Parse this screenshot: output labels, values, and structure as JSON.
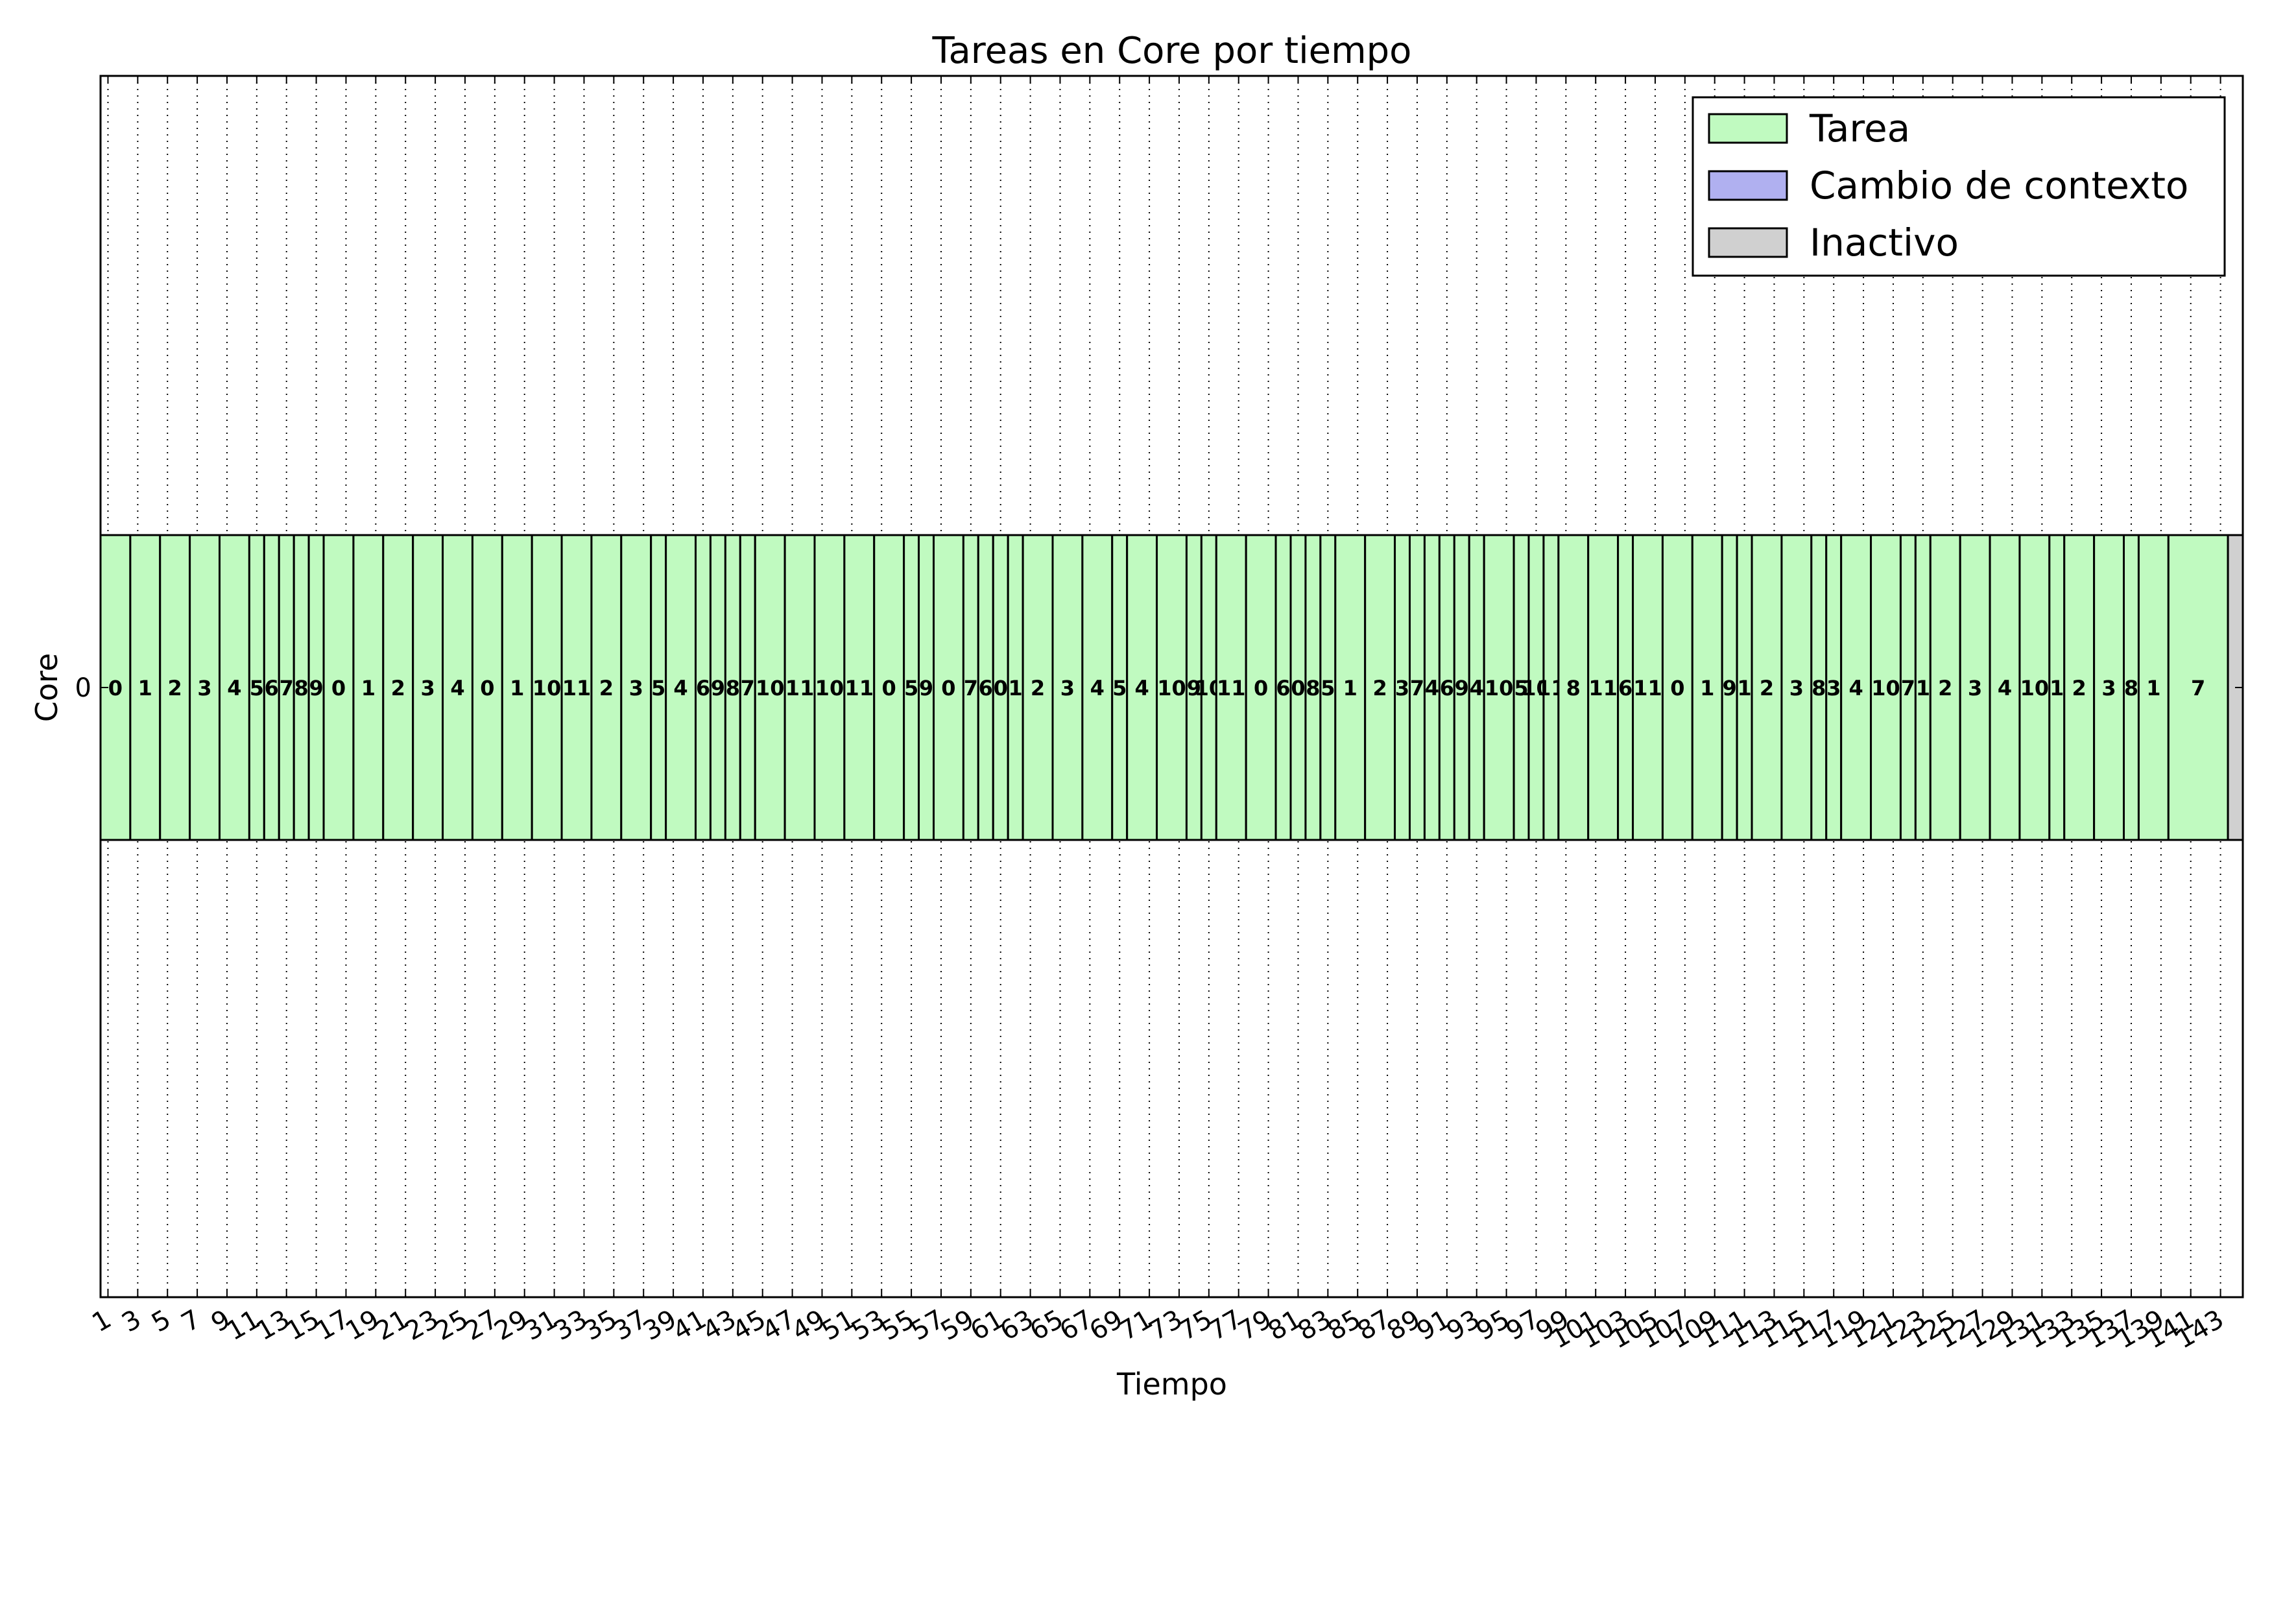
{
  "chart_data": {
    "type": "bar",
    "title": "Tareas en Core por tiempo",
    "xlabel": "Tiempo",
    "ylabel": "Core",
    "xlim": [
      0,
      144
    ],
    "grid": true,
    "cores": [
      "0"
    ],
    "x_ticks": [
      "1",
      "3",
      "5",
      "7",
      "9",
      "11",
      "13",
      "15",
      "17",
      "19",
      "21",
      "23",
      "25",
      "27",
      "29",
      "31",
      "33",
      "35",
      "37",
      "39",
      "41",
      "43",
      "45",
      "47",
      "49",
      "51",
      "53",
      "55",
      "57",
      "59",
      "61",
      "63",
      "65",
      "67",
      "69",
      "71",
      "73",
      "75",
      "77",
      "79",
      "81",
      "83",
      "85",
      "87",
      "89",
      "91",
      "93",
      "95",
      "97",
      "99",
      "101",
      "103",
      "105",
      "107",
      "109",
      "111",
      "113",
      "115",
      "117",
      "119",
      "121",
      "123",
      "125",
      "127",
      "129",
      "131",
      "133",
      "135",
      "137",
      "139",
      "141",
      "143"
    ],
    "legend": {
      "placement": "top-right",
      "items": [
        {
          "label": "Tarea",
          "color": "#c0fac0"
        },
        {
          "label": "Cambio de contexto",
          "color": "#b0b0f0"
        },
        {
          "label": "Inactivo",
          "color": "#d0d0d0"
        }
      ]
    },
    "colors": {
      "tarea": "#c0fac0",
      "cambio": "#b0b0f0",
      "inactivo": "#d0d0d0"
    },
    "segments": [
      {
        "task": "0",
        "start": 0,
        "end": 2,
        "kind": "tarea"
      },
      {
        "task": "1",
        "start": 2,
        "end": 4,
        "kind": "tarea"
      },
      {
        "task": "2",
        "start": 4,
        "end": 6,
        "kind": "tarea"
      },
      {
        "task": "3",
        "start": 6,
        "end": 8,
        "kind": "tarea"
      },
      {
        "task": "4",
        "start": 8,
        "end": 10,
        "kind": "tarea"
      },
      {
        "task": "5",
        "start": 10,
        "end": 11,
        "kind": "tarea"
      },
      {
        "task": "6",
        "start": 11,
        "end": 12,
        "kind": "tarea"
      },
      {
        "task": "7",
        "start": 12,
        "end": 13,
        "kind": "tarea"
      },
      {
        "task": "8",
        "start": 13,
        "end": 14,
        "kind": "tarea"
      },
      {
        "task": "9",
        "start": 14,
        "end": 15,
        "kind": "tarea"
      },
      {
        "task": "0",
        "start": 15,
        "end": 17,
        "kind": "tarea"
      },
      {
        "task": "1",
        "start": 17,
        "end": 19,
        "kind": "tarea"
      },
      {
        "task": "2",
        "start": 19,
        "end": 21,
        "kind": "tarea"
      },
      {
        "task": "3",
        "start": 21,
        "end": 23,
        "kind": "tarea"
      },
      {
        "task": "4",
        "start": 23,
        "end": 25,
        "kind": "tarea"
      },
      {
        "task": "0",
        "start": 25,
        "end": 27,
        "kind": "tarea"
      },
      {
        "task": "1",
        "start": 27,
        "end": 29,
        "kind": "tarea"
      },
      {
        "task": "10",
        "start": 29,
        "end": 31,
        "kind": "tarea"
      },
      {
        "task": "11",
        "start": 31,
        "end": 33,
        "kind": "tarea"
      },
      {
        "task": "2",
        "start": 33,
        "end": 35,
        "kind": "tarea"
      },
      {
        "task": "3",
        "start": 35,
        "end": 37,
        "kind": "tarea"
      },
      {
        "task": "5",
        "start": 37,
        "end": 38,
        "kind": "tarea"
      },
      {
        "task": "4",
        "start": 38,
        "end": 40,
        "kind": "tarea"
      },
      {
        "task": "6",
        "start": 40,
        "end": 41,
        "kind": "tarea"
      },
      {
        "task": "9",
        "start": 41,
        "end": 42,
        "kind": "tarea"
      },
      {
        "task": "8",
        "start": 42,
        "end": 43,
        "kind": "tarea"
      },
      {
        "task": "7",
        "start": 43,
        "end": 44,
        "kind": "tarea"
      },
      {
        "task": "10",
        "start": 44,
        "end": 46,
        "kind": "tarea"
      },
      {
        "task": "11",
        "start": 46,
        "end": 48,
        "kind": "tarea"
      },
      {
        "task": "10",
        "start": 48,
        "end": 50,
        "kind": "tarea"
      },
      {
        "task": "11",
        "start": 50,
        "end": 52,
        "kind": "tarea"
      },
      {
        "task": "0",
        "start": 52,
        "end": 54,
        "kind": "tarea"
      },
      {
        "task": "5",
        "start": 54,
        "end": 55,
        "kind": "tarea"
      },
      {
        "task": "9",
        "start": 55,
        "end": 56,
        "kind": "tarea"
      },
      {
        "task": "0",
        "start": 56,
        "end": 58,
        "kind": "tarea"
      },
      {
        "task": "7",
        "start": 58,
        "end": 59,
        "kind": "tarea"
      },
      {
        "task": "6",
        "start": 59,
        "end": 60,
        "kind": "tarea"
      },
      {
        "task": "0",
        "start": 60,
        "end": 61,
        "kind": "tarea"
      },
      {
        "task": "1",
        "start": 61,
        "end": 62,
        "kind": "tarea"
      },
      {
        "task": "2",
        "start": 62,
        "end": 64,
        "kind": "tarea"
      },
      {
        "task": "3",
        "start": 64,
        "end": 66,
        "kind": "tarea"
      },
      {
        "task": "4",
        "start": 66,
        "end": 68,
        "kind": "tarea"
      },
      {
        "task": "5",
        "start": 68,
        "end": 69,
        "kind": "tarea"
      },
      {
        "task": "4",
        "start": 69,
        "end": 71,
        "kind": "tarea"
      },
      {
        "task": "10",
        "start": 71,
        "end": 73,
        "kind": "tarea"
      },
      {
        "task": "9",
        "start": 73,
        "end": 74,
        "kind": "tarea"
      },
      {
        "task": "10",
        "start": 74,
        "end": 75,
        "kind": "tarea"
      },
      {
        "task": "11",
        "start": 75,
        "end": 77,
        "kind": "tarea"
      },
      {
        "task": "0",
        "start": 77,
        "end": 79,
        "kind": "tarea"
      },
      {
        "task": "6",
        "start": 79,
        "end": 80,
        "kind": "tarea"
      },
      {
        "task": "0",
        "start": 80,
        "end": 81,
        "kind": "tarea"
      },
      {
        "task": "8",
        "start": 81,
        "end": 82,
        "kind": "tarea"
      },
      {
        "task": "5",
        "start": 82,
        "end": 83,
        "kind": "tarea"
      },
      {
        "task": "1",
        "start": 83,
        "end": 85,
        "kind": "tarea"
      },
      {
        "task": "2",
        "start": 85,
        "end": 87,
        "kind": "tarea"
      },
      {
        "task": "3",
        "start": 87,
        "end": 88,
        "kind": "tarea"
      },
      {
        "task": "7",
        "start": 88,
        "end": 89,
        "kind": "tarea"
      },
      {
        "task": "4",
        "start": 89,
        "end": 90,
        "kind": "tarea"
      },
      {
        "task": "6",
        "start": 90,
        "end": 91,
        "kind": "tarea"
      },
      {
        "task": "9",
        "start": 91,
        "end": 92,
        "kind": "tarea"
      },
      {
        "task": "4",
        "start": 92,
        "end": 93,
        "kind": "tarea"
      },
      {
        "task": "10",
        "start": 93,
        "end": 95,
        "kind": "tarea"
      },
      {
        "task": "5",
        "start": 95,
        "end": 96,
        "kind": "tarea"
      },
      {
        "task": "10",
        "start": 96,
        "end": 97,
        "kind": "tarea"
      },
      {
        "task": "11",
        "start": 97,
        "end": 98,
        "kind": "tarea"
      },
      {
        "task": "8",
        "start": 98,
        "end": 100,
        "kind": "tarea"
      },
      {
        "task": "11",
        "start": 100,
        "end": 102,
        "kind": "tarea"
      },
      {
        "task": "6",
        "start": 102,
        "end": 103,
        "kind": "tarea"
      },
      {
        "task": "11",
        "start": 103,
        "end": 105,
        "kind": "tarea"
      },
      {
        "task": "0",
        "start": 105,
        "end": 107,
        "kind": "tarea"
      },
      {
        "task": "1",
        "start": 107,
        "end": 109,
        "kind": "tarea"
      },
      {
        "task": "9",
        "start": 109,
        "end": 110,
        "kind": "tarea"
      },
      {
        "task": "1",
        "start": 110,
        "end": 111,
        "kind": "tarea"
      },
      {
        "task": "2",
        "start": 111,
        "end": 113,
        "kind": "tarea"
      },
      {
        "task": "3",
        "start": 113,
        "end": 115,
        "kind": "tarea"
      },
      {
        "task": "8",
        "start": 115,
        "end": 116,
        "kind": "tarea"
      },
      {
        "task": "3",
        "start": 116,
        "end": 117,
        "kind": "tarea"
      },
      {
        "task": "4",
        "start": 117,
        "end": 119,
        "kind": "tarea"
      },
      {
        "task": "10",
        "start": 119,
        "end": 121,
        "kind": "tarea"
      },
      {
        "task": "7",
        "start": 121,
        "end": 122,
        "kind": "tarea"
      },
      {
        "task": "1",
        "start": 122,
        "end": 123,
        "kind": "tarea"
      },
      {
        "task": "2",
        "start": 123,
        "end": 125,
        "kind": "tarea"
      },
      {
        "task": "3",
        "start": 125,
        "end": 127,
        "kind": "tarea"
      },
      {
        "task": "4",
        "start": 127,
        "end": 129,
        "kind": "tarea"
      },
      {
        "task": "10",
        "start": 129,
        "end": 131,
        "kind": "tarea"
      },
      {
        "task": "1",
        "start": 131,
        "end": 132,
        "kind": "tarea"
      },
      {
        "task": "2",
        "start": 132,
        "end": 134,
        "kind": "tarea"
      },
      {
        "task": "3",
        "start": 134,
        "end": 136,
        "kind": "tarea"
      },
      {
        "task": "8",
        "start": 136,
        "end": 137,
        "kind": "tarea"
      },
      {
        "task": "1",
        "start": 137,
        "end": 139,
        "kind": "tarea"
      },
      {
        "task": "7",
        "start": 139,
        "end": 143,
        "kind": "tarea"
      },
      {
        "task": "",
        "start": 143,
        "end": 144,
        "kind": "inactivo"
      }
    ]
  }
}
